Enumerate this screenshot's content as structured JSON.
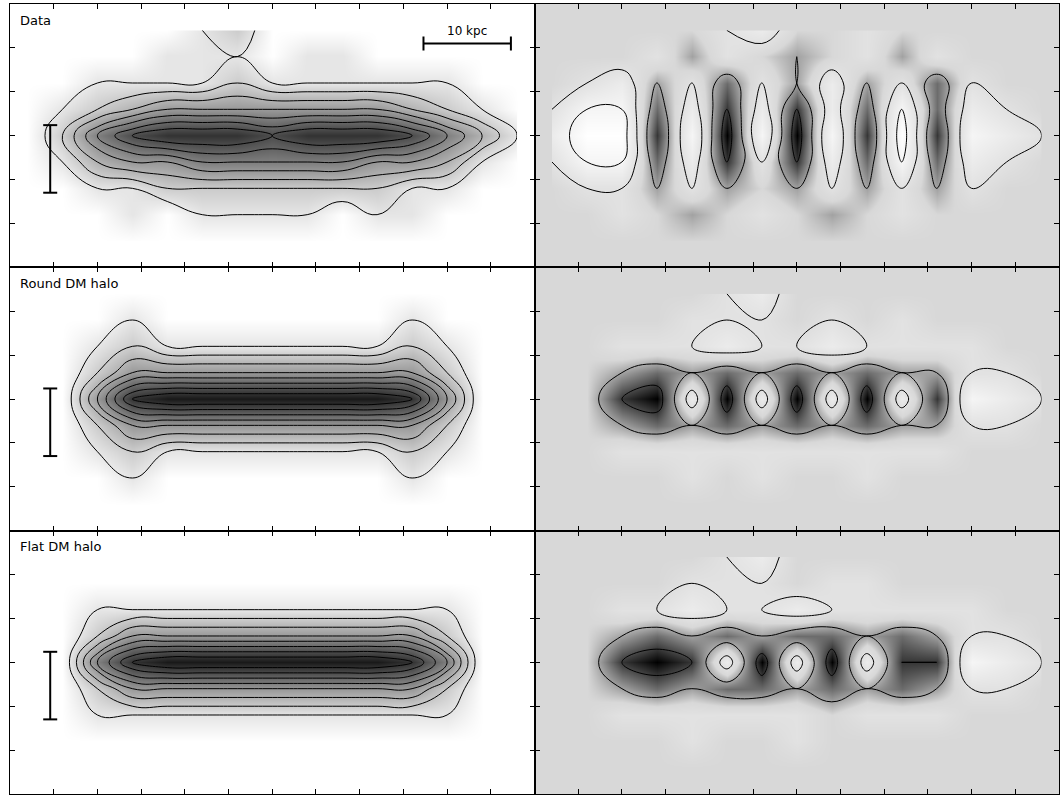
{
  "chart_data": [
    {
      "type": "contour",
      "title": "Data",
      "xlim": [
        -30,
        30
      ],
      "ylim": [
        -15,
        15
      ],
      "xticks": [
        -30,
        -25,
        -20,
        -15,
        -10,
        -5,
        0,
        5,
        10,
        15,
        20,
        25,
        30
      ],
      "yticks": [
        -15,
        -10,
        -5,
        0,
        5,
        10,
        15
      ],
      "tick_labels": false,
      "zlim": [
        0,
        10
      ],
      "levels": [
        1,
        2,
        3,
        4,
        5,
        6,
        7,
        8,
        9
      ],
      "x": [
        -28,
        -24,
        -20,
        -16,
        -12,
        -8,
        -4,
        0,
        4,
        8,
        12,
        16,
        20,
        24,
        28
      ],
      "y": [
        -12,
        -9,
        -6,
        -3,
        0,
        3,
        6,
        9,
        12
      ],
      "z": [
        [
          0,
          0,
          0,
          0,
          0,
          0,
          0,
          0,
          0,
          0,
          0,
          0,
          0,
          0,
          0
        ],
        [
          0,
          0,
          0,
          1,
          0,
          1,
          1,
          1,
          1,
          0,
          1,
          1,
          0,
          0,
          0
        ],
        [
          0,
          0,
          1,
          1,
          2,
          2,
          2,
          2,
          2,
          2,
          2,
          1,
          1,
          0,
          0
        ],
        [
          0,
          1,
          3,
          4,
          4,
          5,
          5,
          5,
          5,
          5,
          4,
          4,
          3,
          1,
          0
        ],
        [
          0,
          2,
          5,
          7,
          8,
          8,
          8,
          7,
          8,
          8,
          8,
          7,
          5,
          3,
          1
        ],
        [
          0,
          1,
          2,
          3,
          4,
          4,
          4,
          4,
          4,
          4,
          4,
          3,
          2,
          1,
          0
        ],
        [
          0,
          0,
          1,
          1,
          1,
          1,
          2,
          1,
          1,
          1,
          1,
          1,
          1,
          0,
          0
        ],
        [
          0,
          0,
          0,
          0,
          1,
          1,
          1,
          0,
          1,
          1,
          0,
          0,
          0,
          0,
          0
        ],
        [
          0,
          0,
          0,
          0,
          0,
          1,
          2,
          0,
          0,
          0,
          0,
          0,
          0,
          0,
          0
        ]
      ],
      "scale_bars": [
        {
          "x": [
            17.3,
            27.3
          ],
          "y": [
            10.5,
            10.5
          ],
          "label": "10 kpc"
        },
        {
          "x": [
            -25.4,
            -25.4
          ],
          "y": [
            -6.5,
            1.2
          ]
        }
      ]
    },
    {
      "type": "contour",
      "xlim": [
        -30,
        30
      ],
      "ylim": [
        -15,
        15
      ],
      "xticks": [
        -30,
        -25,
        -20,
        -15,
        -10,
        -5,
        0,
        5,
        10,
        15,
        20,
        25,
        30
      ],
      "yticks": [
        -15,
        -10,
        -5,
        0,
        5,
        10,
        15
      ],
      "tick_labels": false,
      "zlim": [
        -4,
        4
      ],
      "levels": [
        -3,
        -1,
        1,
        3
      ],
      "x": [
        -28,
        -24,
        -20,
        -16,
        -12,
        -8,
        -4,
        0,
        4,
        8,
        12,
        16,
        20,
        24,
        28
      ],
      "y": [
        -12,
        -9,
        -6,
        -3,
        0,
        3,
        6,
        9,
        12
      ],
      "z": [
        [
          0,
          0,
          0,
          0,
          0,
          0,
          0,
          0,
          0,
          0,
          0,
          0,
          0,
          0,
          0
        ],
        [
          0,
          0,
          1,
          0,
          -1,
          0,
          1,
          0,
          -1,
          0,
          1,
          0,
          0,
          0,
          0
        ],
        [
          0,
          1,
          1,
          -1,
          1,
          -1,
          0,
          -1,
          1,
          -1,
          1,
          -1,
          1,
          0,
          0
        ],
        [
          1,
          3,
          3,
          -2,
          2,
          -3,
          1,
          -3,
          2,
          -2,
          3,
          -2,
          2,
          1,
          0
        ],
        [
          2,
          4,
          4,
          -3,
          3,
          -4,
          3,
          -4,
          3,
          -3,
          4,
          -3,
          3,
          2,
          1
        ],
        [
          1,
          3,
          3,
          -2,
          2,
          -3,
          2,
          -3,
          2,
          -2,
          3,
          -2,
          2,
          1,
          0
        ],
        [
          0,
          1,
          2,
          -1,
          1,
          -2,
          1,
          -1,
          2,
          -1,
          1,
          -2,
          1,
          0,
          0
        ],
        [
          0,
          0,
          0,
          1,
          -1,
          1,
          0,
          -1,
          0,
          1,
          -1,
          1,
          0,
          0,
          0
        ],
        [
          0,
          0,
          0,
          0,
          0,
          1,
          2,
          0,
          0,
          1,
          0,
          0,
          0,
          0,
          0
        ]
      ]
    },
    {
      "type": "contour",
      "title": "Round DM halo",
      "xlim": [
        -30,
        30
      ],
      "ylim": [
        -15,
        15
      ],
      "xticks": [
        -30,
        -25,
        -20,
        -15,
        -10,
        -5,
        0,
        5,
        10,
        15,
        20,
        25,
        30
      ],
      "yticks": [
        -15,
        -10,
        -5,
        0,
        5,
        10,
        15
      ],
      "tick_labels": false,
      "zlim": [
        0,
        10
      ],
      "levels": [
        1,
        2,
        3,
        4,
        5,
        6,
        7,
        8,
        9
      ],
      "x": [
        -28,
        -24,
        -20,
        -16,
        -12,
        -8,
        -4,
        0,
        4,
        8,
        12,
        16,
        20,
        24,
        28
      ],
      "y": [
        -12,
        -9,
        -6,
        -3,
        0,
        3,
        6,
        9,
        12
      ],
      "z": [
        [
          0,
          0,
          0,
          0,
          0,
          0,
          0,
          0,
          0,
          0,
          0,
          0,
          0,
          0,
          0
        ],
        [
          0,
          0,
          0,
          1,
          0,
          0,
          0,
          0,
          0,
          0,
          0,
          1,
          0,
          0,
          0
        ],
        [
          0,
          0,
          1,
          2,
          1,
          1,
          1,
          1,
          1,
          1,
          1,
          2,
          1,
          0,
          0
        ],
        [
          0,
          0,
          2,
          4,
          4,
          4,
          4,
          4,
          4,
          4,
          4,
          4,
          2,
          0,
          0
        ],
        [
          0,
          0,
          4,
          8,
          9,
          9,
          9,
          9,
          9,
          9,
          9,
          8,
          4,
          0,
          0
        ],
        [
          0,
          0,
          2,
          4,
          4,
          4,
          4,
          4,
          4,
          4,
          4,
          4,
          2,
          0,
          0
        ],
        [
          0,
          0,
          1,
          2,
          1,
          1,
          1,
          1,
          1,
          1,
          1,
          2,
          1,
          0,
          0
        ],
        [
          0,
          0,
          0,
          1,
          0,
          0,
          0,
          0,
          0,
          0,
          0,
          1,
          0,
          0,
          0
        ],
        [
          0,
          0,
          0,
          0,
          0,
          0,
          0,
          0,
          0,
          0,
          0,
          0,
          0,
          0,
          0
        ]
      ],
      "scale_bars": [
        {
          "x": [
            -25.4,
            -25.4
          ],
          "y": [
            -6.5,
            1.2
          ]
        }
      ]
    },
    {
      "type": "contour",
      "xlim": [
        -30,
        30
      ],
      "ylim": [
        -15,
        15
      ],
      "xticks": [
        -30,
        -25,
        -20,
        -15,
        -10,
        -5,
        0,
        5,
        10,
        15,
        20,
        25,
        30
      ],
      "yticks": [
        -15,
        -10,
        -5,
        0,
        5,
        10,
        15
      ],
      "tick_labels": false,
      "zlim": [
        -4,
        4
      ],
      "levels": [
        -3,
        -1,
        1,
        3
      ],
      "x": [
        -28,
        -24,
        -20,
        -16,
        -12,
        -8,
        -4,
        0,
        4,
        8,
        12,
        16,
        20,
        24,
        28
      ],
      "y": [
        -12,
        -9,
        -6,
        -3,
        0,
        3,
        6,
        9,
        12
      ],
      "z": [
        [
          0,
          0,
          0,
          0,
          0,
          0,
          0,
          0,
          0,
          0,
          0,
          0,
          0,
          0,
          0
        ],
        [
          0,
          0,
          0,
          0,
          1,
          0,
          1,
          0,
          0,
          1,
          0,
          0,
          0,
          0,
          0
        ],
        [
          0,
          0,
          1,
          1,
          1,
          1,
          1,
          1,
          1,
          1,
          1,
          1,
          0,
          0,
          0
        ],
        [
          0,
          0,
          -1,
          -2,
          -1,
          -2,
          -1,
          -2,
          -1,
          -2,
          -1,
          -1,
          1,
          1,
          0
        ],
        [
          0,
          0,
          -3,
          -4,
          2,
          -4,
          2,
          -4,
          2,
          -4,
          2,
          -3,
          3,
          2,
          1
        ],
        [
          0,
          0,
          -1,
          -2,
          -1,
          -2,
          -1,
          -2,
          -1,
          -2,
          -1,
          -1,
          1,
          1,
          0
        ],
        [
          0,
          0,
          1,
          1,
          1,
          2,
          1,
          1,
          2,
          1,
          1,
          1,
          1,
          0,
          0
        ],
        [
          0,
          0,
          0,
          0,
          1,
          1,
          1,
          0,
          1,
          0,
          1,
          0,
          0,
          0,
          0
        ],
        [
          0,
          0,
          0,
          0,
          0,
          1,
          2,
          0,
          0,
          0,
          0,
          0,
          0,
          0,
          0
        ]
      ]
    },
    {
      "type": "contour",
      "title": "Flat DM halo",
      "xlim": [
        -30,
        30
      ],
      "ylim": [
        -15,
        15
      ],
      "xticks": [
        -30,
        -25,
        -20,
        -15,
        -10,
        -5,
        0,
        5,
        10,
        15,
        20,
        25,
        30
      ],
      "yticks": [
        -15,
        -10,
        -5,
        0,
        5,
        10,
        15
      ],
      "tick_labels": false,
      "zlim": [
        0,
        10
      ],
      "levels": [
        1,
        2,
        3,
        4,
        5,
        6,
        7,
        8,
        9
      ],
      "x": [
        -28,
        -24,
        -20,
        -16,
        -12,
        -8,
        -4,
        0,
        4,
        8,
        12,
        16,
        20,
        24,
        28
      ],
      "y": [
        -12,
        -9,
        -6,
        -3,
        0,
        3,
        6,
        9,
        12
      ],
      "z": [
        [
          0,
          0,
          0,
          0,
          0,
          0,
          0,
          0,
          0,
          0,
          0,
          0,
          0,
          0,
          0
        ],
        [
          0,
          0,
          0,
          0,
          0,
          0,
          0,
          0,
          0,
          0,
          0,
          0,
          0,
          0,
          0
        ],
        [
          0,
          0,
          1,
          1,
          1,
          1,
          1,
          1,
          1,
          1,
          1,
          1,
          1,
          0,
          0
        ],
        [
          0,
          0,
          2,
          4,
          4,
          4,
          4,
          4,
          4,
          4,
          4,
          4,
          2,
          0,
          0
        ],
        [
          0,
          0,
          5,
          8,
          9,
          9,
          9,
          9,
          9,
          9,
          9,
          8,
          5,
          0,
          0
        ],
        [
          0,
          0,
          2,
          4,
          4,
          4,
          4,
          4,
          4,
          4,
          4,
          4,
          2,
          0,
          0
        ],
        [
          0,
          0,
          1,
          1,
          1,
          1,
          1,
          1,
          1,
          1,
          1,
          1,
          1,
          0,
          0
        ],
        [
          0,
          0,
          0,
          0,
          0,
          0,
          0,
          0,
          0,
          0,
          0,
          0,
          0,
          0,
          0
        ],
        [
          0,
          0,
          0,
          0,
          0,
          0,
          0,
          0,
          0,
          0,
          0,
          0,
          0,
          0,
          0
        ]
      ],
      "scale_bars": [
        {
          "x": [
            -25.4,
            -25.4
          ],
          "y": [
            -6.5,
            1.2
          ]
        }
      ]
    },
    {
      "type": "contour",
      "xlim": [
        -30,
        30
      ],
      "ylim": [
        -15,
        15
      ],
      "xticks": [
        -30,
        -25,
        -20,
        -15,
        -10,
        -5,
        0,
        5,
        10,
        15,
        20,
        25,
        30
      ],
      "yticks": [
        -15,
        -10,
        -5,
        0,
        5,
        10,
        15
      ],
      "tick_labels": false,
      "zlim": [
        -4,
        4
      ],
      "levels": [
        -3,
        -1,
        1,
        3
      ],
      "x": [
        -28,
        -24,
        -20,
        -16,
        -12,
        -8,
        -4,
        0,
        4,
        8,
        12,
        16,
        20,
        24,
        28
      ],
      "y": [
        -12,
        -9,
        -6,
        -3,
        0,
        3,
        6,
        9,
        12
      ],
      "z": [
        [
          0,
          0,
          0,
          0,
          0,
          0,
          0,
          0,
          0,
          0,
          0,
          0,
          0,
          0,
          0
        ],
        [
          0,
          0,
          0,
          0,
          1,
          0,
          0,
          1,
          0,
          0,
          0,
          0,
          0,
          0,
          0
        ],
        [
          0,
          0,
          1,
          1,
          1,
          1,
          1,
          1,
          0,
          1,
          1,
          1,
          0,
          0,
          0
        ],
        [
          0,
          0,
          -1,
          -2,
          -1,
          -2,
          -2,
          -1,
          -2,
          -1,
          -2,
          -1,
          1,
          1,
          0
        ],
        [
          0,
          0,
          -3,
          -4,
          -3,
          2,
          -4,
          2,
          -4,
          2,
          -3,
          -3,
          3,
          2,
          1
        ],
        [
          0,
          0,
          -1,
          -2,
          -1,
          -2,
          -1,
          -2,
          -2,
          -1,
          -2,
          -1,
          1,
          1,
          0
        ],
        [
          0,
          0,
          1,
          1,
          2,
          1,
          1,
          2,
          1,
          1,
          1,
          1,
          1,
          0,
          0
        ],
        [
          0,
          0,
          0,
          0,
          1,
          1,
          1,
          0,
          1,
          1,
          0,
          0,
          0,
          0,
          0
        ],
        [
          0,
          0,
          0,
          0,
          0,
          1,
          2,
          0,
          0,
          0,
          0,
          0,
          0,
          0,
          0
        ]
      ]
    }
  ]
}
